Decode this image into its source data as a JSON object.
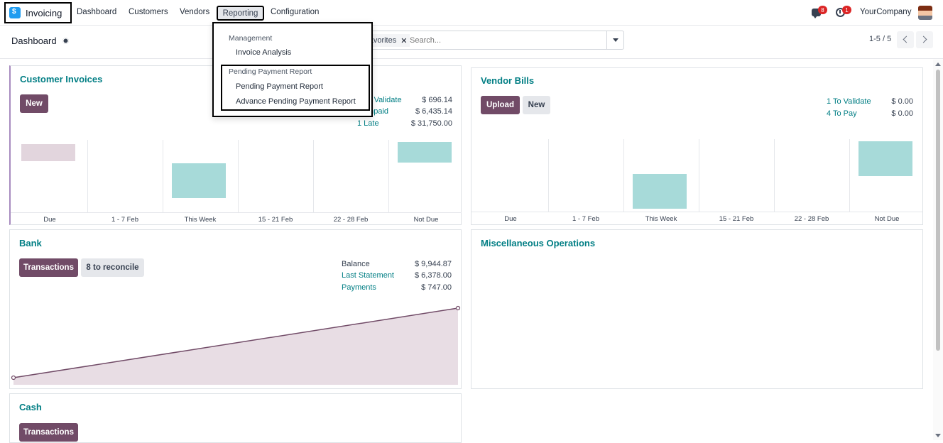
{
  "navbar": {
    "app_name": "Invoicing",
    "menu": [
      "Dashboard",
      "Customers",
      "Vendors",
      "Reporting",
      "Configuration"
    ],
    "messages_count": "8",
    "activities_count": "1",
    "company": "YourCompany"
  },
  "control_panel": {
    "title": "Dashboard",
    "facet": "Favorites",
    "search_placeholder": "Search...",
    "pager": "1-5 / 5"
  },
  "reporting_menu": {
    "section1": "Management",
    "item1": "Invoice Analysis",
    "section2": "Pending Payment Report",
    "item2": "Pending Payment Report",
    "item3": "Advance Pending Payment Report"
  },
  "customer_invoices": {
    "title": "Customer Invoices",
    "new_label": "New",
    "stats": [
      {
        "label": "1 To Validate",
        "value": "$ 696.14"
      },
      {
        "label": "3 Unpaid",
        "value": "$ 6,435.14"
      },
      {
        "label": "1 Late",
        "value": "$ 31,750.00"
      }
    ]
  },
  "vendor_bills": {
    "title": "Vendor Bills",
    "upload_label": "Upload",
    "new_label": "New",
    "stats": [
      {
        "label": "1 To Validate",
        "value": "$ 0.00"
      },
      {
        "label": "4 To Pay",
        "value": "$ 0.00"
      }
    ]
  },
  "bank": {
    "title": "Bank",
    "transactions_label": "Transactions",
    "reconcile_label": "8 to reconcile",
    "stats": [
      {
        "label": "Balance",
        "value": "$ 9,944.87"
      },
      {
        "label": "Last Statement",
        "value": "$ 6,378.00"
      },
      {
        "label": "Payments",
        "value": "$ 747.00"
      }
    ]
  },
  "misc": {
    "title": "Miscellaneous Operations"
  },
  "cash": {
    "title": "Cash",
    "transactions_label": "Transactions"
  },
  "chart_data": [
    {
      "type": "bar",
      "categories": [
        "Due",
        "1 - 7 Feb",
        "This Week",
        "15 - 21 Feb",
        "22 - 28 Feb",
        "Not Due"
      ],
      "values": [
        -30,
        0,
        60,
        0,
        0,
        35
      ],
      "colors": [
        "#e2d5dd",
        "#a7dad9"
      ]
    },
    {
      "type": "bar",
      "categories": [
        "Due",
        "1 - 7 Feb",
        "This Week",
        "15 - 21 Feb",
        "22 - 28 Feb",
        "Not Due"
      ],
      "values": [
        0,
        0,
        60,
        0,
        0,
        60
      ],
      "colors": [
        "#a7dad9"
      ]
    },
    {
      "type": "area",
      "x": [
        0,
        1
      ],
      "y": [
        0,
        1
      ],
      "colors": [
        "#714b67",
        "#e8dde4"
      ]
    }
  ]
}
